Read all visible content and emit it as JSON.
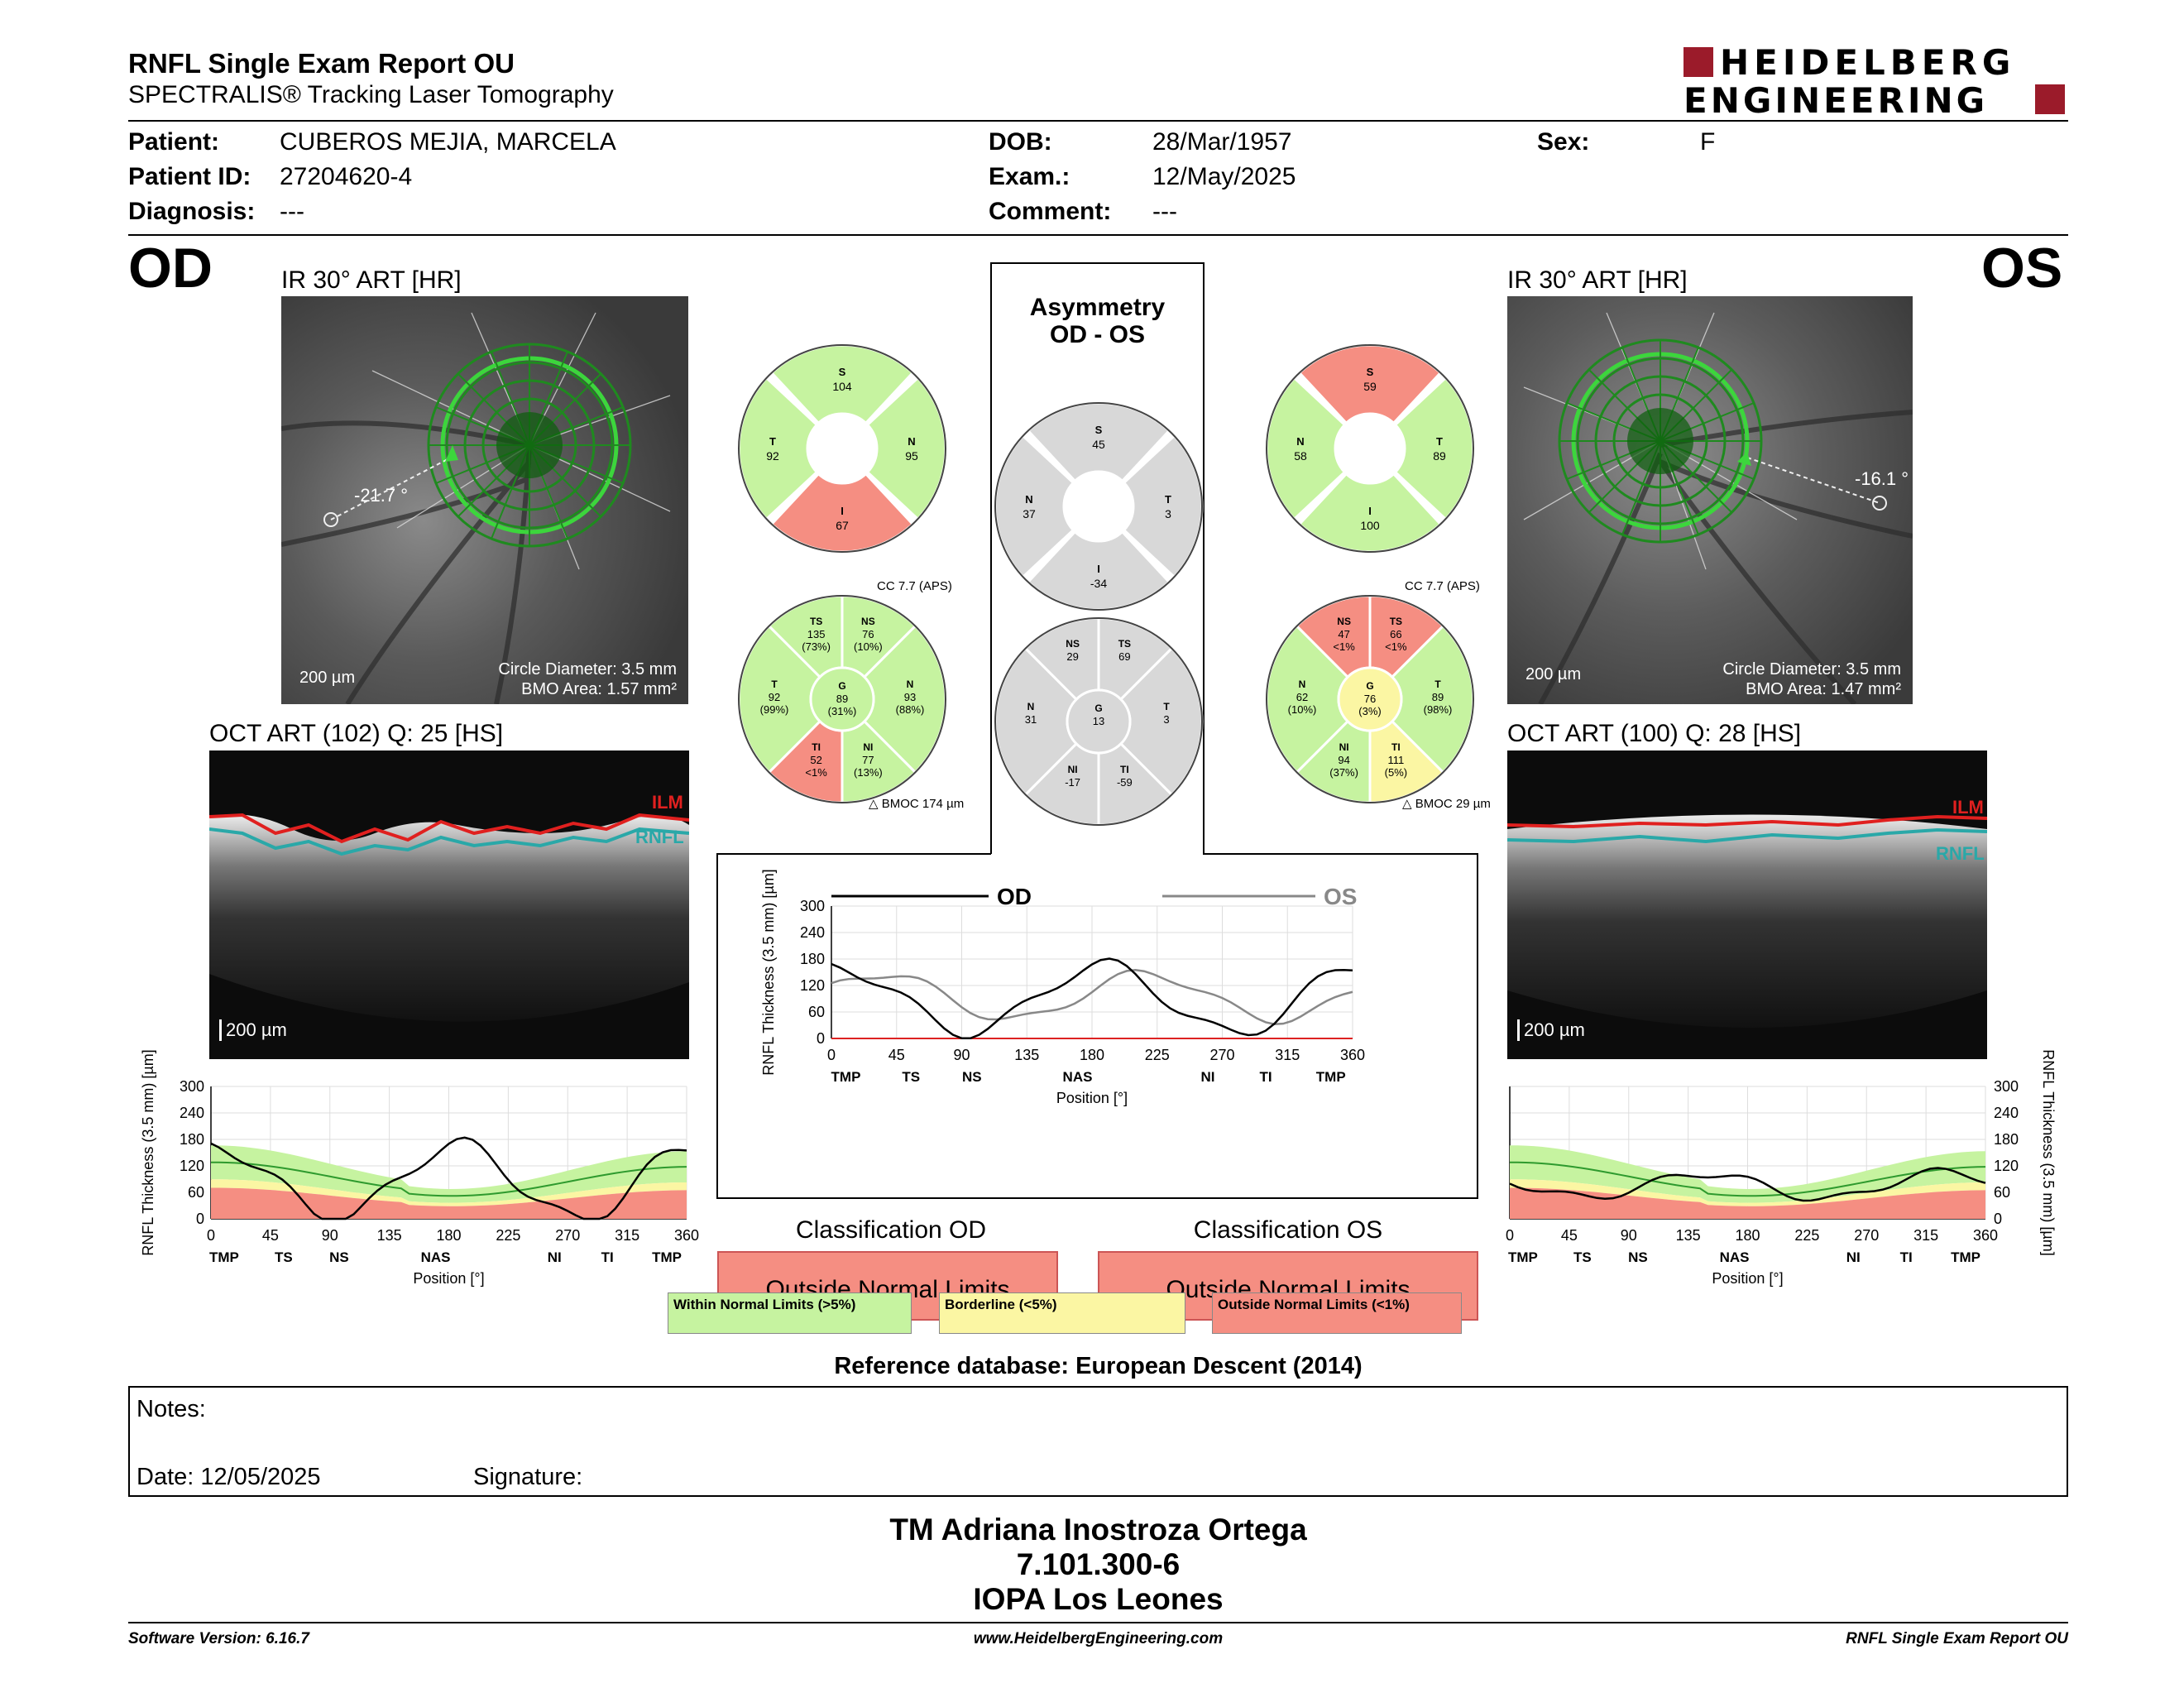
{
  "header": {
    "title": "RNFL Single Exam Report OU",
    "subtitle": "SPECTRALIS® Tracking Laser Tomography",
    "logo_line1": "HEIDELBERG",
    "logo_line2": "ENGINEERING"
  },
  "patient": {
    "patient_label": "Patient:",
    "patient_value": "CUBEROS MEJIA, MARCELA",
    "id_label": "Patient ID:",
    "id_value": "27204620-4",
    "diag_label": "Diagnosis:",
    "diag_value": "---",
    "dob_label": "DOB:",
    "dob_value": "28/Mar/1957",
    "exam_label": "Exam.:",
    "exam_value": "12/May/2025",
    "comment_label": "Comment:",
    "comment_value": "---",
    "sex_label": "Sex:",
    "sex_value": "F"
  },
  "od": {
    "eye": "OD",
    "ir_title": "IR 30° ART [HR]",
    "angle": "-21.7 °",
    "scale": "200 µm",
    "circle_diameter": "Circle Diameter: 3.5 mm",
    "bmo_area": "BMO Area: 1.57 mm²",
    "oct_title": "OCT ART (102) Q: 25 [HS]",
    "ilm": "ILM",
    "rnfl": "RNFL",
    "oct_scale": "200 µm",
    "classification_title": "Classification OD",
    "classification": "Outside Normal Limits",
    "cc": "CC 7.7 (APS)",
    "bmoc": "BMOC 174 µm",
    "quadrants": {
      "S": "104",
      "T": "92",
      "N": "95",
      "I": "67"
    },
    "sectors": {
      "TS": [
        "135",
        "(73%)"
      ],
      "NS": [
        "76",
        "(10%)"
      ],
      "T": [
        "92",
        "(99%)"
      ],
      "G": [
        "89",
        "(31%)"
      ],
      "N": [
        "93",
        "(88%)"
      ],
      "TI": [
        "52",
        "<1%"
      ],
      "NI": [
        "77",
        "(13%)"
      ]
    }
  },
  "os": {
    "eye": "OS",
    "ir_title": "IR 30° ART [HR]",
    "angle": "-16.1 °",
    "scale": "200 µm",
    "circle_diameter": "Circle Diameter: 3.5 mm",
    "bmo_area": "BMO Area: 1.47 mm²",
    "oct_title": "OCT ART (100) Q: 28 [HS]",
    "ilm": "ILM",
    "rnfl": "RNFL",
    "oct_scale": "200 µm",
    "classification_title": "Classification OS",
    "classification": "Outside Normal Limits",
    "cc": "CC 7.7 (APS)",
    "bmoc": "BMOC 29 µm",
    "quadrants": {
      "S": "59",
      "N": "58",
      "T": "89",
      "I": "100"
    },
    "sectors": {
      "NS": [
        "47",
        "<1%"
      ],
      "TS": [
        "66",
        "<1%"
      ],
      "N": [
        "62",
        "(10%)"
      ],
      "G": [
        "76",
        "(3%)"
      ],
      "T": [
        "89",
        "(98%)"
      ],
      "NI": [
        "94",
        "(37%)"
      ],
      "TI": [
        "111",
        "(5%)"
      ]
    }
  },
  "asymmetry": {
    "title1": "Asymmetry",
    "title2": "OD - OS",
    "quadrants": {
      "S": "45",
      "N": "37",
      "T": "3",
      "I": "-34"
    },
    "sectors": {
      "NS": "29",
      "TS": "69",
      "N": "31",
      "G": "13",
      "T": "3",
      "NI": "-17",
      "TI": "-59"
    }
  },
  "compare_chart": {
    "od_label": "OD",
    "os_label": "OS"
  },
  "chart_data": [
    {
      "type": "line",
      "title": "",
      "series": [
        {
          "name": "OD"
        },
        {
          "name": "OS"
        }
      ],
      "ylabel": "RNFL Thickness (3.5 mm) [µm]",
      "xlabel": "Position [°]",
      "x_ticks": [
        "0",
        "45",
        "90",
        "135",
        "180",
        "225",
        "270",
        "315",
        "360"
      ],
      "y_ticks": [
        "0",
        "60",
        "120",
        "180",
        "240",
        "300"
      ],
      "sector_labels": [
        "TMP",
        "TS",
        "NS",
        "NAS",
        "NI",
        "TI",
        "TMP"
      ],
      "xlim": [
        0,
        360
      ],
      "ylim": [
        0,
        300
      ]
    },
    {
      "type": "line",
      "title": "",
      "series": [
        {
          "name": "OD"
        }
      ],
      "ylabel": "RNFL Thickness (3.5 mm) [µm]",
      "xlabel": "Position [°]",
      "xlim": [
        0,
        360
      ],
      "ylim": [
        0,
        300
      ]
    },
    {
      "type": "line",
      "title": "",
      "series": [
        {
          "name": "OS"
        }
      ],
      "ylabel": "RNFL Thickness (3.5 mm) [µm]",
      "xlabel": "Position [°]",
      "sector_labels": [
        "TMP",
        "TS",
        "NS",
        "NAS",
        "NI",
        "TI",
        "TMP"
      ],
      "xlim": [
        0,
        360
      ],
      "ylim": [
        0,
        300
      ]
    }
  ],
  "legend": {
    "wnl": "Within Normal Limits (>5%)",
    "border": "Borderline (<5%)",
    "onl": "Outside Normal Limits (<1%)"
  },
  "reference": "Reference database: European Descent (2014)",
  "notes": {
    "label": "Notes:",
    "date": "Date: 12/05/2025",
    "signature": "Signature:"
  },
  "signatory": {
    "name": "TM Adriana Inostroza Ortega",
    "id": "7.101.300-6",
    "org": "IOPA Los Leones"
  },
  "footer": {
    "version": "Software Version: 6.16.7",
    "website": "www.HeidelbergEngineering.com",
    "report": "RNFL Single Exam Report OU"
  },
  "colors": {
    "green": "#c6f3a0",
    "red": "#f58e82",
    "yellow": "#fbf6a3",
    "gray": "#d8d8d8"
  }
}
